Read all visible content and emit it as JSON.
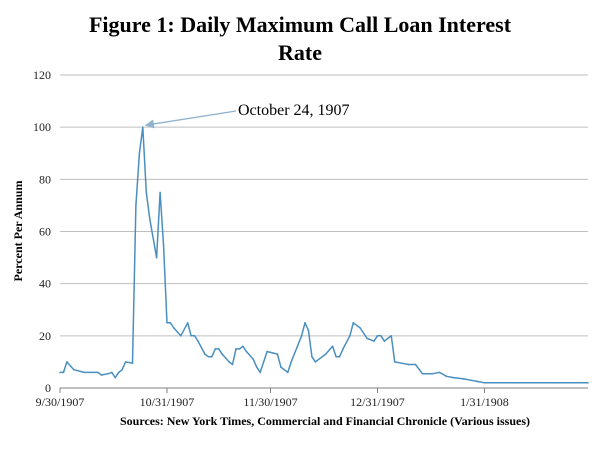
{
  "chart_data": {
    "type": "line",
    "title_line1": "Figure 1: Daily Maximum Call Loan Interest",
    "title_line2": "Rate",
    "ylabel": "Percent Per Annum",
    "source": "Sources: New York Times, Commercial and Financial Chronicle (Various issues)",
    "annotation": {
      "text": "October 24, 1907",
      "x": "1907-10-24",
      "y": 100
    },
    "ylim": [
      0,
      120
    ],
    "yticks": [
      0,
      20,
      40,
      60,
      80,
      100,
      120
    ],
    "xlim": [
      "1907-09-30",
      "1908-03-01"
    ],
    "xticks": [
      {
        "date": "1907-09-30",
        "label": "9/30/1907"
      },
      {
        "date": "1907-10-31",
        "label": "10/31/1907"
      },
      {
        "date": "1907-11-30",
        "label": "11/30/1907"
      },
      {
        "date": "1907-12-31",
        "label": "12/31/1907"
      },
      {
        "date": "1908-01-31",
        "label": "1/31/1908"
      }
    ],
    "grid": "horizontal",
    "line_color": "#4a8fc0",
    "series": [
      {
        "points": [
          [
            "1907-09-30",
            6
          ],
          [
            "1907-10-01",
            6
          ],
          [
            "1907-10-02",
            10
          ],
          [
            "1907-10-04",
            7
          ],
          [
            "1907-10-07",
            6
          ],
          [
            "1907-10-11",
            6
          ],
          [
            "1907-10-12",
            5
          ],
          [
            "1907-10-14",
            5.5
          ],
          [
            "1907-10-15",
            6
          ],
          [
            "1907-10-16",
            4
          ],
          [
            "1907-10-17",
            6
          ],
          [
            "1907-10-18",
            7
          ],
          [
            "1907-10-19",
            10
          ],
          [
            "1907-10-21",
            9.5
          ],
          [
            "1907-10-22",
            70
          ],
          [
            "1907-10-23",
            90
          ],
          [
            "1907-10-24",
            100
          ],
          [
            "1907-10-25",
            75
          ],
          [
            "1907-10-26",
            65
          ],
          [
            "1907-10-28",
            50
          ],
          [
            "1907-10-29",
            75
          ],
          [
            "1907-10-30",
            55
          ],
          [
            "1907-10-31",
            25
          ],
          [
            "1907-11-01",
            25
          ],
          [
            "1907-11-02",
            23
          ],
          [
            "1907-11-04",
            20
          ],
          [
            "1907-11-06",
            25
          ],
          [
            "1907-11-07",
            20
          ],
          [
            "1907-11-08",
            20
          ],
          [
            "1907-11-09",
            18
          ],
          [
            "1907-11-11",
            13
          ],
          [
            "1907-11-12",
            12
          ],
          [
            "1907-11-13",
            12
          ],
          [
            "1907-11-14",
            15
          ],
          [
            "1907-11-15",
            15
          ],
          [
            "1907-11-16",
            13
          ],
          [
            "1907-11-18",
            10
          ],
          [
            "1907-11-19",
            9
          ],
          [
            "1907-11-20",
            15
          ],
          [
            "1907-11-21",
            15
          ],
          [
            "1907-11-22",
            16
          ],
          [
            "1907-11-23",
            14
          ],
          [
            "1907-11-25",
            11
          ],
          [
            "1907-11-26",
            8
          ],
          [
            "1907-11-27",
            6
          ],
          [
            "1907-11-29",
            14
          ],
          [
            "1907-12-02",
            13
          ],
          [
            "1907-12-03",
            8
          ],
          [
            "1907-12-05",
            6
          ],
          [
            "1907-12-06",
            10
          ],
          [
            "1907-12-09",
            20
          ],
          [
            "1907-12-10",
            25
          ],
          [
            "1907-12-11",
            22
          ],
          [
            "1907-12-12",
            12
          ],
          [
            "1907-12-13",
            10
          ],
          [
            "1907-12-14",
            11
          ],
          [
            "1907-12-16",
            13
          ],
          [
            "1907-12-18",
            16
          ],
          [
            "1907-12-19",
            12
          ],
          [
            "1907-12-20",
            12
          ],
          [
            "1907-12-21",
            15
          ],
          [
            "1907-12-23",
            20
          ],
          [
            "1907-12-24",
            25
          ],
          [
            "1907-12-26",
            23
          ],
          [
            "1907-12-28",
            19
          ],
          [
            "1907-12-30",
            18
          ],
          [
            "1907-12-31",
            20
          ],
          [
            "1908-01-01",
            20
          ],
          [
            "1908-01-02",
            18
          ],
          [
            "1908-01-03",
            19
          ],
          [
            "1908-01-04",
            20
          ],
          [
            "1908-01-05",
            10
          ],
          [
            "1908-01-07",
            9.5
          ],
          [
            "1908-01-09",
            9
          ],
          [
            "1908-01-11",
            9
          ],
          [
            "1908-01-13",
            5.5
          ],
          [
            "1908-01-16",
            5.5
          ],
          [
            "1908-01-18",
            6
          ],
          [
            "1908-01-20",
            4.5
          ],
          [
            "1908-01-22",
            4
          ],
          [
            "1908-01-25",
            3.5
          ],
          [
            "1908-01-27",
            3
          ],
          [
            "1908-01-29",
            2.5
          ],
          [
            "1908-01-31",
            2
          ],
          [
            "1908-02-10",
            2
          ],
          [
            "1908-02-20",
            2
          ],
          [
            "1908-03-01",
            2
          ]
        ]
      }
    ]
  }
}
